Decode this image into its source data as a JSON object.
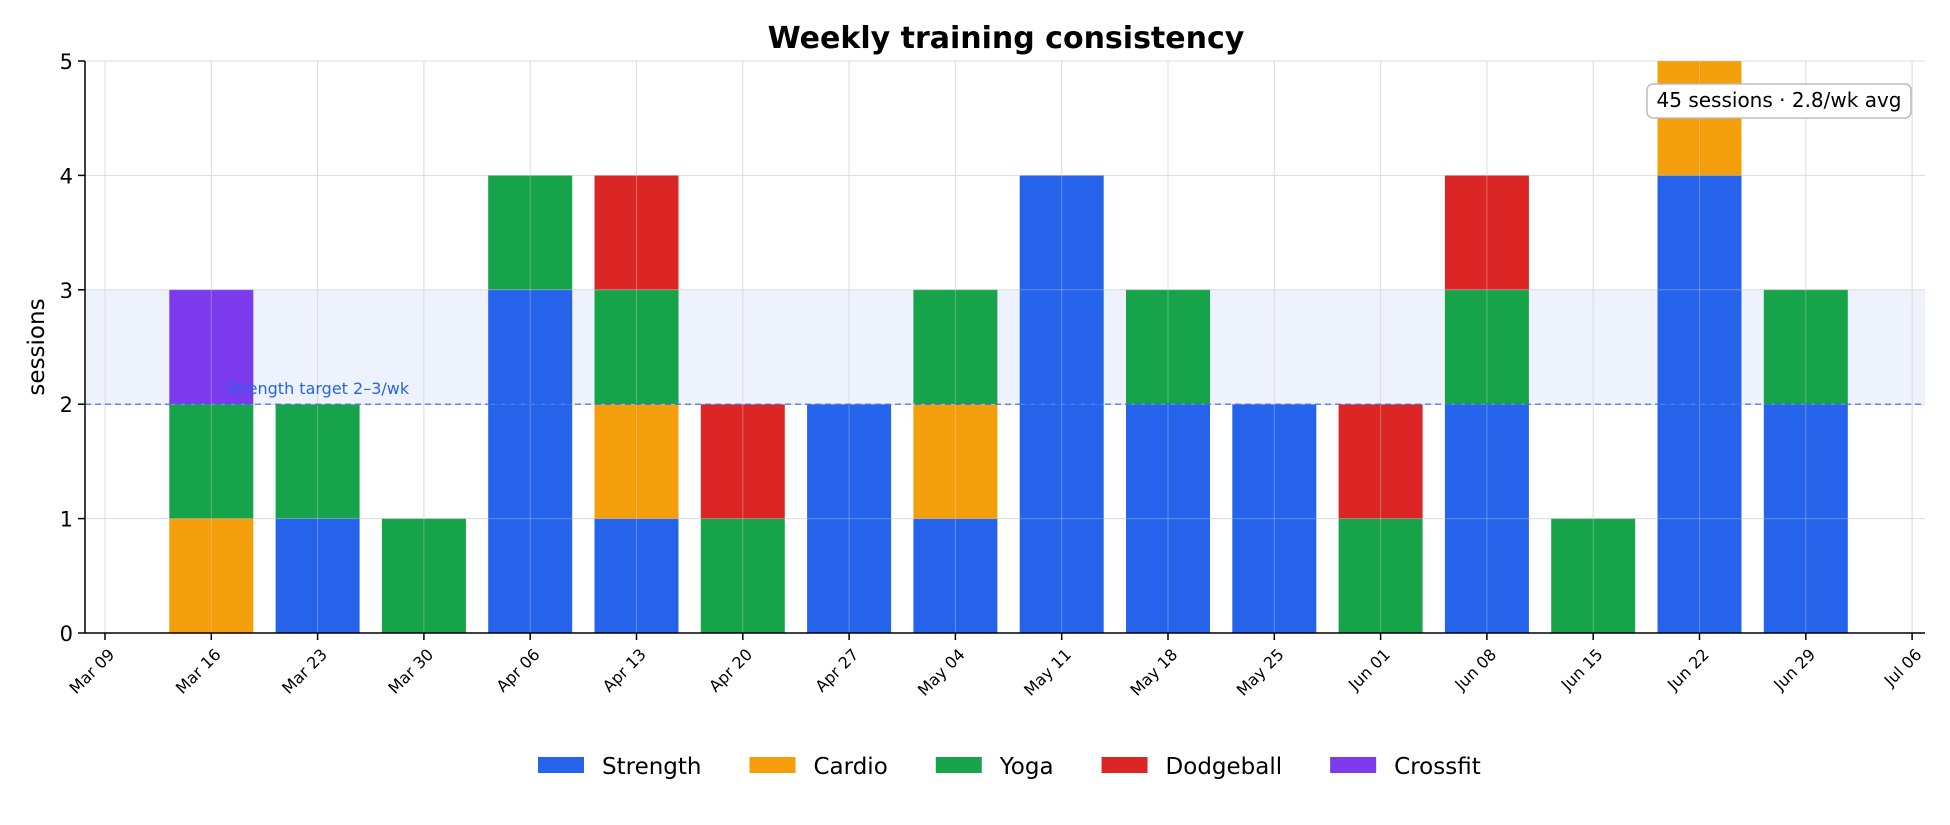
{
  "chart_data": {
    "type": "bar",
    "stacked": true,
    "title": "Weekly training consistency",
    "xlabel": "",
    "ylabel": "sessions",
    "ylim": [
      0,
      5
    ],
    "yticks": [
      "0",
      "1",
      "2",
      "3",
      "4",
      "5"
    ],
    "xticks": [
      "Mar 09",
      "Mar 16",
      "Mar 23",
      "Mar 30",
      "Apr 06",
      "Apr 13",
      "Apr 20",
      "Apr 27",
      "May 04",
      "May 11",
      "May 18",
      "May 25",
      "Jun 01",
      "Jun 08",
      "Jun 15",
      "Jun 22",
      "Jun 29",
      "Jul 06"
    ],
    "categories": [
      "Mar 16",
      "Mar 23",
      "Mar 30",
      "Apr 06",
      "Apr 13",
      "Apr 20",
      "Apr 27",
      "May 04",
      "May 11",
      "May 18",
      "May 25",
      "Jun 01",
      "Jun 08",
      "Jun 15",
      "Jun 22",
      "Jun 29"
    ],
    "series": [
      {
        "name": "Strength",
        "color": "#2563eb",
        "values": [
          0,
          1,
          0,
          3,
          1,
          0,
          2,
          1,
          4,
          2,
          2,
          0,
          2,
          0,
          4,
          2
        ]
      },
      {
        "name": "Cardio",
        "color": "#f59e0b",
        "values": [
          1,
          0,
          0,
          0,
          1,
          0,
          0,
          1,
          0,
          0,
          0,
          0,
          0,
          0,
          1,
          0
        ]
      },
      {
        "name": "Yoga",
        "color": "#16a34a",
        "values": [
          1,
          1,
          1,
          1,
          1,
          1,
          0,
          1,
          0,
          1,
          0,
          1,
          1,
          1,
          0,
          1
        ]
      },
      {
        "name": "Dodgeball",
        "color": "#dc2626",
        "values": [
          0,
          0,
          0,
          0,
          1,
          1,
          0,
          0,
          0,
          0,
          0,
          1,
          1,
          0,
          0,
          0
        ]
      },
      {
        "name": "Crossfit",
        "color": "#7c3aed",
        "values": [
          1,
          0,
          0,
          0,
          0,
          0,
          0,
          0,
          0,
          0,
          0,
          0,
          0,
          0,
          0,
          0
        ]
      }
    ],
    "target_band": {
      "low": 2,
      "high": 3,
      "label": "Strength target 2–3/wk",
      "color": "#2563eb"
    },
    "annotation": "45 sessions · 2.8/wk avg",
    "grid": true,
    "legend_position": "bottom-center"
  }
}
